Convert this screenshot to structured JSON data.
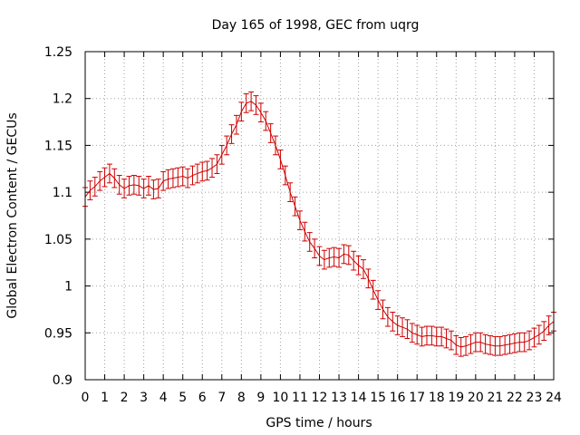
{
  "chart_data": {
    "type": "line",
    "title": "Day 165 of 1998, GEC from uqrg",
    "xlabel": "GPS time / hours",
    "ylabel": "Global Electron Content / GECUs",
    "xlim": [
      0,
      24
    ],
    "ylim": [
      0.9,
      1.25
    ],
    "xticks": [
      "0",
      "1",
      "2",
      "3",
      "4",
      "5",
      "6",
      "7",
      "8",
      "9",
      "10",
      "11",
      "12",
      "13",
      "14",
      "15",
      "16",
      "17",
      "18",
      "19",
      "20",
      "21",
      "22",
      "23",
      "24"
    ],
    "yticks": [
      "0.9",
      "0.95",
      "1",
      "1.05",
      "1.1",
      "1.15",
      "1.2",
      "1.25"
    ],
    "grid": true,
    "error": 0.01,
    "series": [
      {
        "name": "GEC",
        "color": "#cc0000",
        "x": [
          0.0,
          0.25,
          0.5,
          0.75,
          1.0,
          1.25,
          1.5,
          1.75,
          2.0,
          2.25,
          2.5,
          2.75,
          3.0,
          3.25,
          3.5,
          3.75,
          4.0,
          4.25,
          4.5,
          4.75,
          5.0,
          5.25,
          5.5,
          5.75,
          6.0,
          6.25,
          6.5,
          6.75,
          7.0,
          7.25,
          7.5,
          7.75,
          8.0,
          8.25,
          8.5,
          8.75,
          9.0,
          9.25,
          9.5,
          9.75,
          10.0,
          10.25,
          10.5,
          10.75,
          11.0,
          11.25,
          11.5,
          11.75,
          12.0,
          12.25,
          12.5,
          12.75,
          13.0,
          13.25,
          13.5,
          13.75,
          14.0,
          14.25,
          14.5,
          14.75,
          15.0,
          15.25,
          15.5,
          15.75,
          16.0,
          16.25,
          16.5,
          16.75,
          17.0,
          17.25,
          17.5,
          17.75,
          18.0,
          18.25,
          18.5,
          18.75,
          19.0,
          19.25,
          19.5,
          19.75,
          20.0,
          20.25,
          20.5,
          20.75,
          21.0,
          21.25,
          21.5,
          21.75,
          22.0,
          22.25,
          22.5,
          22.75,
          23.0,
          23.25,
          23.5,
          23.75,
          24.0
        ],
        "values": [
          1.095,
          1.102,
          1.106,
          1.112,
          1.116,
          1.12,
          1.115,
          1.108,
          1.104,
          1.107,
          1.108,
          1.107,
          1.104,
          1.107,
          1.103,
          1.104,
          1.112,
          1.114,
          1.115,
          1.116,
          1.117,
          1.115,
          1.118,
          1.12,
          1.122,
          1.123,
          1.126,
          1.13,
          1.14,
          1.15,
          1.162,
          1.172,
          1.186,
          1.195,
          1.197,
          1.193,
          1.185,
          1.176,
          1.163,
          1.15,
          1.135,
          1.118,
          1.1,
          1.085,
          1.07,
          1.058,
          1.047,
          1.04,
          1.032,
          1.028,
          1.03,
          1.031,
          1.03,
          1.034,
          1.033,
          1.027,
          1.022,
          1.018,
          1.008,
          0.996,
          0.985,
          0.975,
          0.967,
          0.962,
          0.958,
          0.956,
          0.954,
          0.95,
          0.948,
          0.946,
          0.947,
          0.947,
          0.946,
          0.946,
          0.944,
          0.942,
          0.937,
          0.935,
          0.936,
          0.938,
          0.94,
          0.94,
          0.938,
          0.937,
          0.936,
          0.936,
          0.937,
          0.938,
          0.939,
          0.94,
          0.94,
          0.942,
          0.945,
          0.948,
          0.952,
          0.958,
          0.962
        ]
      }
    ]
  }
}
